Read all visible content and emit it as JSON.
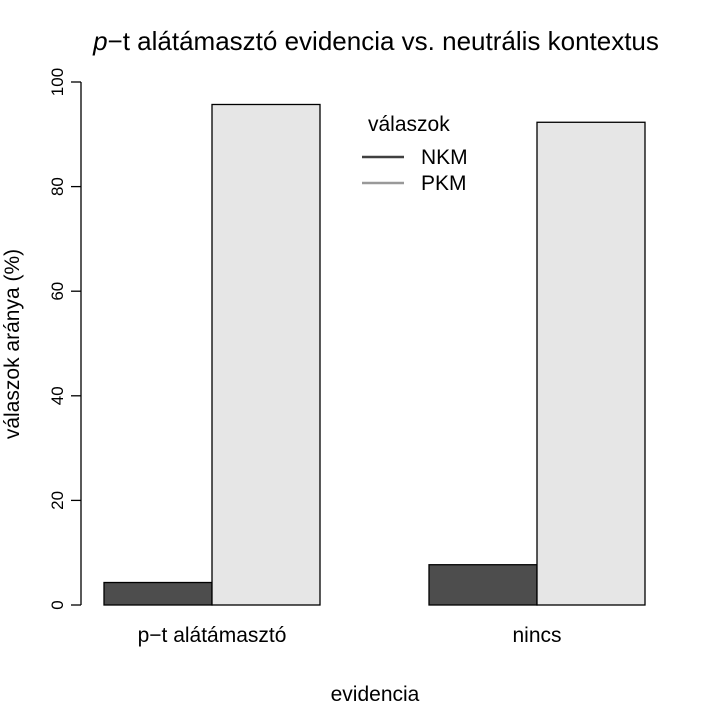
{
  "chart_data": {
    "type": "bar",
    "title_italic": "p",
    "title_rest": "−t alátámasztó evidencia vs. neutrális kontextus",
    "xlabel": "evidencia",
    "ylabel": "válaszok aránya (%)",
    "categories": [
      "p−t alátámasztó",
      "nincs"
    ],
    "series": [
      {
        "name": "NKM",
        "values": [
          4.3,
          7.7
        ],
        "color": "#4d4d4d",
        "legend_color": "#404040"
      },
      {
        "name": "PKM",
        "values": [
          95.7,
          92.3
        ],
        "color": "#e6e6e6",
        "legend_color": "#999999"
      }
    ],
    "ylim": [
      0,
      100
    ],
    "yticks": [
      0,
      20,
      40,
      60,
      80,
      100
    ],
    "legend": {
      "title": "válaszok",
      "position": "top-center"
    },
    "grid": false
  }
}
